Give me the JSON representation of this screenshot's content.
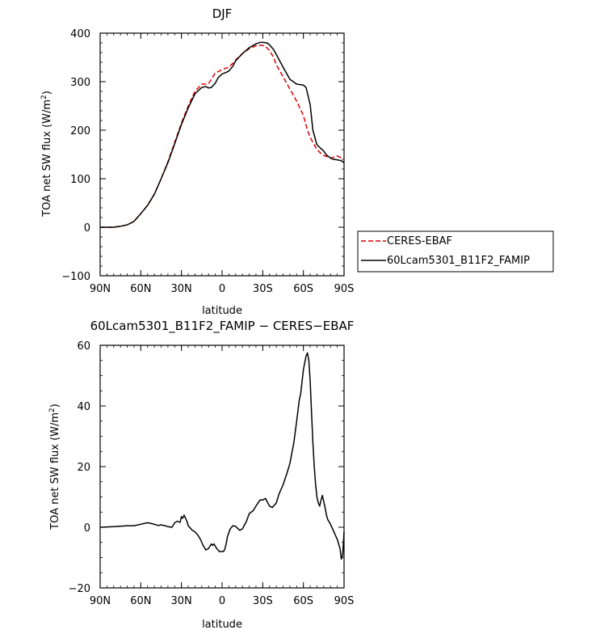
{
  "chart_data": [
    {
      "type": "line",
      "title": "DJF",
      "xlabel": "latitude",
      "ylabel_main": "TOA net SW flux (W/m",
      "ylabel_sup": "2",
      "ylabel_tail": ")",
      "xlim": [
        -90,
        90
      ],
      "ylim": [
        -100,
        400
      ],
      "xticks": [
        -90,
        -60,
        -30,
        0,
        30,
        60,
        90
      ],
      "xticklabels": [
        "90N",
        "60N",
        "30N",
        "0",
        "30S",
        "60S",
        "90S"
      ],
      "yticks": [
        -100,
        0,
        100,
        200,
        300,
        400
      ],
      "yticklabels": [
        "−100",
        "0",
        "100",
        "200",
        "300",
        "400"
      ],
      "grid": false,
      "legend_position": "right",
      "series": [
        {
          "name": "CERES-EBAF",
          "color": "#dd0000",
          "dash": "dashed",
          "x": [
            -90,
            -80,
            -75,
            -70,
            -65,
            -60,
            -55,
            -50,
            -45,
            -40,
            -35,
            -30,
            -25,
            -20,
            -15,
            -12,
            -10,
            -8,
            -5,
            -2,
            0,
            3,
            5,
            8,
            10,
            15,
            20,
            25,
            28,
            30,
            33,
            35,
            38,
            40,
            45,
            50,
            55,
            60,
            63,
            65,
            68,
            70,
            73,
            75,
            78,
            80,
            83,
            85,
            88,
            90
          ],
          "y": [
            0,
            0,
            2,
            5,
            12,
            28,
            45,
            68,
            100,
            135,
            175,
            215,
            250,
            280,
            295,
            295,
            296,
            305,
            318,
            322,
            325,
            328,
            330,
            338,
            345,
            358,
            368,
            374,
            375,
            375,
            370,
            364,
            350,
            335,
            310,
            285,
            260,
            230,
            200,
            185,
            170,
            160,
            152,
            148,
            145,
            142,
            145,
            147,
            143,
            140
          ]
        },
        {
          "name": "60Lcam5301_B11F2_FAMIP",
          "color": "#000000",
          "dash": "solid",
          "x": [
            -90,
            -80,
            -75,
            -70,
            -65,
            -60,
            -55,
            -50,
            -45,
            -40,
            -35,
            -30,
            -25,
            -20,
            -15,
            -12,
            -10,
            -8,
            -5,
            -3,
            0,
            3,
            5,
            8,
            10,
            15,
            20,
            25,
            28,
            30,
            33,
            35,
            38,
            40,
            45,
            50,
            55,
            60,
            62,
            65,
            67,
            70,
            73,
            75,
            77,
            80,
            82,
            85,
            88,
            90
          ],
          "y": [
            0,
            0,
            2,
            5,
            12,
            28,
            45,
            68,
            100,
            133,
            172,
            212,
            246,
            275,
            288,
            290,
            287,
            288,
            297,
            308,
            316,
            319,
            322,
            332,
            343,
            358,
            370,
            378,
            381,
            381,
            380,
            376,
            366,
            356,
            330,
            305,
            295,
            293,
            288,
            252,
            200,
            170,
            162,
            157,
            149,
            143,
            140,
            139,
            137,
            133
          ]
        }
      ]
    },
    {
      "type": "line",
      "title": "60Lcam5301_B11F2_FAMIP − CERES−EBAF",
      "xlabel": "latitude",
      "ylabel_main": "TOA net SW flux (W/m",
      "ylabel_sup": "2",
      "ylabel_tail": ")",
      "xlim": [
        -90,
        90
      ],
      "ylim": [
        -20,
        60
      ],
      "xticks": [
        -90,
        -60,
        -30,
        0,
        30,
        60,
        90
      ],
      "xticklabels": [
        "90N",
        "60N",
        "30N",
        "0",
        "30S",
        "60S",
        "90S"
      ],
      "yticks": [
        -20,
        0,
        20,
        40,
        60
      ],
      "yticklabels": [
        "−20",
        "0",
        "20",
        "40",
        "60"
      ],
      "grid": false,
      "series": [
        {
          "name": "60Lcam5301_B11F2_FAMIP − CERES−EBAF",
          "color": "#000000",
          "dash": "solid",
          "x": [
            -90,
            -80,
            -70,
            -65,
            -60,
            -57,
            -55,
            -52,
            -50,
            -47,
            -45,
            -42,
            -40,
            -37,
            -35,
            -33,
            -31,
            -30,
            -29,
            -28,
            -26,
            -25,
            -23,
            -22,
            -20,
            -18,
            -16,
            -14,
            -12,
            -10,
            -8,
            -7,
            -6,
            -4,
            -2,
            -1,
            0,
            1,
            2,
            3,
            4,
            6,
            8,
            10,
            13,
            15,
            18,
            20,
            23,
            25,
            28,
            30,
            32,
            35,
            37,
            40,
            42,
            45,
            48,
            50,
            53,
            55,
            57,
            58,
            60,
            62,
            63,
            64,
            65,
            66,
            67,
            68,
            69,
            70,
            71,
            72,
            73,
            74,
            75,
            76,
            77,
            78,
            80,
            81,
            82,
            83,
            84,
            85,
            86,
            87,
            88,
            89,
            90
          ],
          "y": [
            0,
            0.2,
            0.5,
            0.5,
            1.0,
            1.3,
            1.5,
            1.2,
            1.0,
            0.6,
            0.8,
            0.5,
            0.2,
            0.0,
            1.5,
            2.0,
            1.6,
            3.5,
            3.0,
            4.0,
            2.0,
            0.5,
            -0.5,
            -1.0,
            -1.5,
            -2.5,
            -4.0,
            -6.0,
            -7.5,
            -7.0,
            -5.5,
            -6.0,
            -5.5,
            -7.0,
            -8.0,
            -8.0,
            -8.0,
            -8.0,
            -7.2,
            -5.5,
            -3.0,
            -0.5,
            0.5,
            0.3,
            -1.0,
            -0.5,
            2.0,
            4.5,
            5.5,
            7.0,
            9.0,
            9.0,
            9.5,
            7.0,
            6.5,
            8.0,
            11.0,
            14.0,
            18.0,
            21.0,
            28.0,
            35.0,
            42.0,
            44.0,
            52.0,
            56.5,
            57.5,
            55.0,
            48.0,
            38.0,
            28.0,
            20.0,
            14.0,
            10.0,
            8.0,
            7.0,
            9.0,
            10.5,
            8.5,
            6.5,
            4.0,
            2.5,
            1.0,
            0.0,
            -1.0,
            -2.0,
            -3.0,
            -4.0,
            -5.5,
            -7.0,
            -10.5,
            -9.0,
            -1.5
          ]
        }
      ]
    }
  ]
}
